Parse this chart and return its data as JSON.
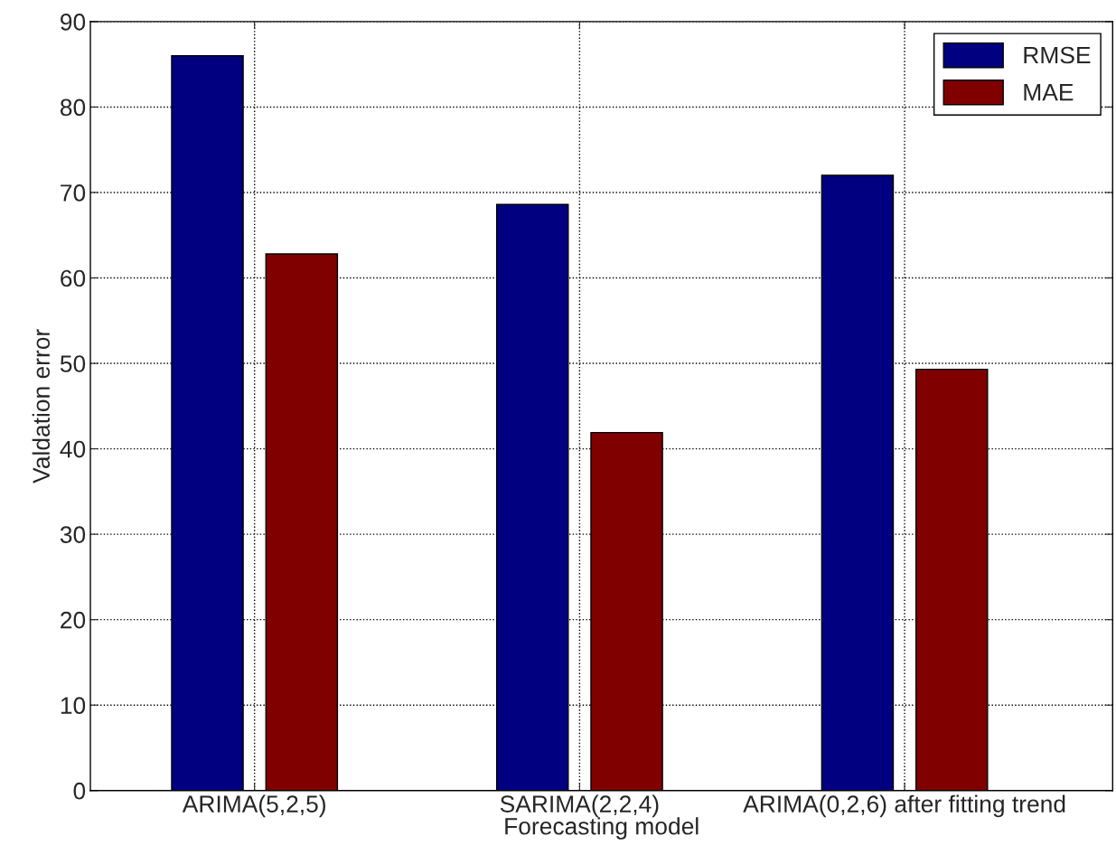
{
  "chart_data": {
    "type": "bar",
    "xlabel": "Forecasting model",
    "ylabel": "Valdation error",
    "categories": [
      "ARIMA(5,2,5)",
      "SARIMA(2,2,4)",
      "ARIMA(0,2,6) after fitting trend"
    ],
    "series": [
      {
        "name": "RMSE",
        "color": "#000080",
        "values": [
          86.0,
          68.6,
          72.0
        ]
      },
      {
        "name": "MAE",
        "color": "#800000",
        "values": [
          62.8,
          41.9,
          49.3
        ]
      }
    ],
    "ylim": [
      0,
      90
    ],
    "yticks": [
      0,
      10,
      20,
      30,
      40,
      50,
      60,
      70,
      80,
      90
    ],
    "grid": true,
    "legend": "top right"
  }
}
